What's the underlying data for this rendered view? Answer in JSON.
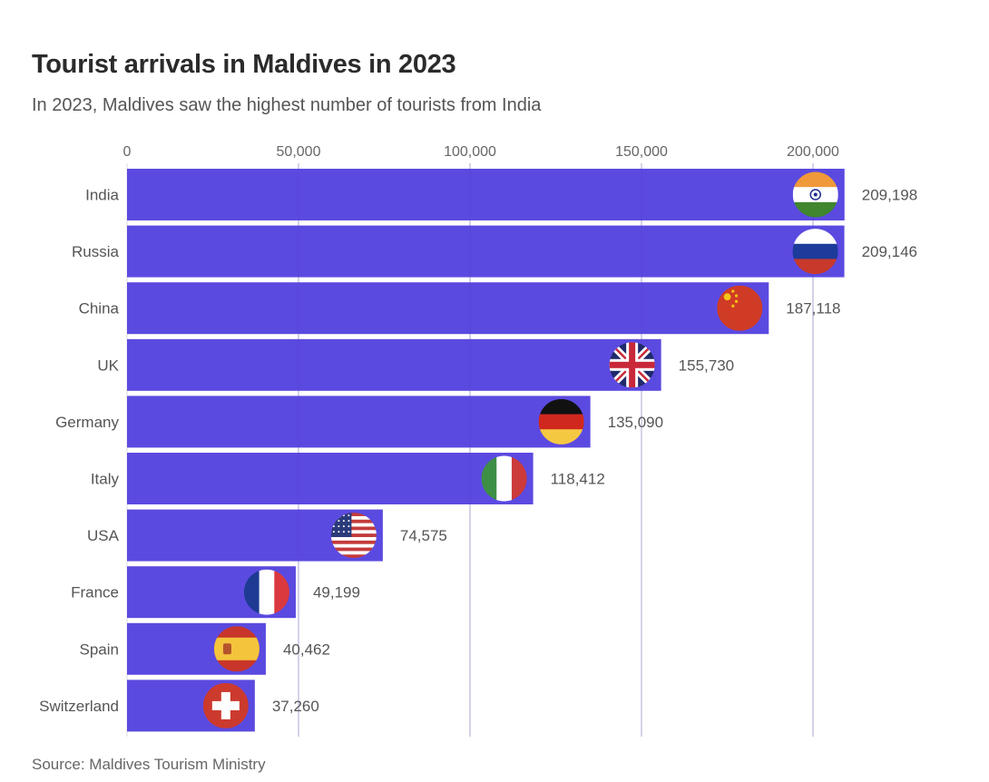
{
  "header": {
    "title": "Tourist arrivals in Maldives in 2023",
    "subtitle": "In 2023, Maldives saw the highest number of tourists from India"
  },
  "footer": {
    "source": "Source: Maldives Tourism Ministry"
  },
  "colors": {
    "bar": "#5b4ae0",
    "grid": "#e2e2e2",
    "text": "#555555"
  },
  "chart_data": {
    "type": "bar",
    "orientation": "horizontal",
    "title": "Tourist arrivals in Maldives in 2023",
    "subtitle": "In 2023, Maldives saw the highest number of tourists from India",
    "xlabel": "",
    "ylabel": "",
    "xlim": [
      0,
      210000
    ],
    "x_ticks": [
      0,
      50000,
      100000,
      150000,
      200000
    ],
    "x_tick_labels": [
      "0",
      "50,000",
      "100,000",
      "150,000",
      "200,000"
    ],
    "x_axis_position": "top",
    "grid": true,
    "categories": [
      "India",
      "Russia",
      "China",
      "UK",
      "Germany",
      "Italy",
      "USA",
      "France",
      "Spain",
      "Switzerland"
    ],
    "values": [
      209198,
      209146,
      187118,
      155730,
      135090,
      118412,
      74575,
      49199,
      40462,
      37260
    ],
    "value_labels": [
      "209,198",
      "209,146",
      "187,118",
      "155,730",
      "135,090",
      "118,412",
      "74,575",
      "49,199",
      "40,462",
      "37,260"
    ],
    "flags": [
      "india-flag",
      "russia-flag",
      "china-flag",
      "uk-flag",
      "germany-flag",
      "italy-flag",
      "usa-flag",
      "france-flag",
      "spain-flag",
      "switzerland-flag"
    ]
  }
}
